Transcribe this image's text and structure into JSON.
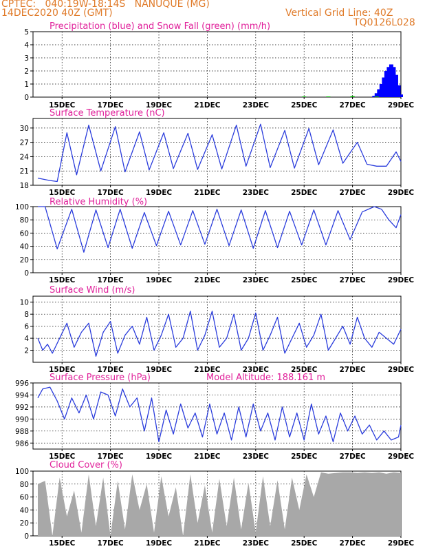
{
  "header": {
    "left_line1": "CPTEC:   040:19W-18:14S   NANUQUE (MG)",
    "left_line2": "14DEC2020 40Z (GMT)",
    "right_line1": "Vertical Grid Line: 40Z",
    "right_line2": "TQ0126L028"
  },
  "x_ticks": [
    "15DEC",
    "17DEC",
    "19DEC",
    "21DEC",
    "23DEC",
    "25DEC",
    "27DEC",
    "29DEC"
  ],
  "chart_data": [
    {
      "id": "precip",
      "type": "bar",
      "title": "Precipitation (blue) and Snow Fall (green) (mm/h)",
      "ylim": [
        0,
        5
      ],
      "yticks": [
        "0",
        "1",
        "2",
        "3",
        "4",
        "5"
      ],
      "ytick_values": [
        0,
        1,
        2,
        3,
        4,
        5
      ],
      "series": [
        {
          "color": "#0000ff",
          "x": [
            13.9,
            14.0,
            14.1,
            14.2,
            14.3,
            14.4,
            14.5,
            14.6,
            14.7,
            14.8,
            14.9,
            15.0
          ],
          "values": [
            0.1,
            0.3,
            0.6,
            1.0,
            1.5,
            2.0,
            2.3,
            2.5,
            2.3,
            1.7,
            0.9,
            0.2
          ]
        },
        {
          "color": "#00c000",
          "x": [
            11.0,
            12.0,
            13.0,
            14.0
          ],
          "values": [
            0.05,
            0.05,
            0.08,
            0.05
          ]
        }
      ]
    },
    {
      "id": "temp",
      "type": "line",
      "title": "Surface Temperature (nC)",
      "ylim": [
        18,
        32
      ],
      "yticks": [
        "18",
        "21",
        "24",
        "27",
        "30"
      ],
      "ytick_values": [
        18,
        21,
        24,
        27,
        30
      ],
      "color": "#2a3cdc",
      "x": [
        0.0,
        0.5,
        0.8,
        1.2,
        1.6,
        2.1,
        2.6,
        3.2,
        3.6,
        4.2,
        4.6,
        5.2,
        5.6,
        6.2,
        6.6,
        7.2,
        7.6,
        8.2,
        8.6,
        9.2,
        9.6,
        10.2,
        10.6,
        11.2,
        11.6,
        12.2,
        12.6,
        13.2,
        13.6,
        14.0,
        14.4,
        14.8,
        15.0
      ],
      "values": [
        19.5,
        19.0,
        18.8,
        29.0,
        20.2,
        30.6,
        21.0,
        30.3,
        20.8,
        29.2,
        21.2,
        29.0,
        21.5,
        28.9,
        21.3,
        28.6,
        21.4,
        30.6,
        22.0,
        30.8,
        21.7,
        29.5,
        21.6,
        29.9,
        22.3,
        29.6,
        22.6,
        27.0,
        22.4,
        22.0,
        22.0,
        25.0,
        23.0
      ]
    },
    {
      "id": "rh",
      "type": "line",
      "title": "Relative Humidity (%)",
      "ylim": [
        0,
        100
      ],
      "yticks": [
        "0",
        "20",
        "40",
        "60",
        "80",
        "100"
      ],
      "ytick_values": [
        0,
        20,
        40,
        60,
        80,
        100
      ],
      "color": "#2a3cdc",
      "x": [
        0.0,
        0.3,
        0.8,
        1.4,
        1.9,
        2.4,
        2.9,
        3.4,
        3.9,
        4.4,
        4.9,
        5.4,
        5.9,
        6.4,
        6.9,
        7.4,
        7.9,
        8.4,
        8.9,
        9.4,
        9.9,
        10.4,
        10.9,
        11.4,
        11.9,
        12.4,
        12.9,
        13.4,
        13.9,
        14.2,
        14.5,
        14.8,
        15.0
      ],
      "values": [
        100,
        100,
        36,
        96,
        31,
        95,
        38,
        96,
        37,
        91,
        41,
        93,
        42,
        94,
        43,
        96,
        41,
        95,
        37,
        94,
        38,
        93,
        42,
        95,
        42,
        94,
        50,
        92,
        100,
        96,
        80,
        68,
        88
      ]
    },
    {
      "id": "wind",
      "type": "line",
      "title": "Surface Wind (m/s)",
      "ylim": [
        0,
        11
      ],
      "yticks": [
        "2",
        "4",
        "6",
        "8",
        "10"
      ],
      "ytick_values": [
        2,
        4,
        6,
        8,
        10
      ],
      "color": "#2a3cdc",
      "x": [
        0.0,
        0.2,
        0.4,
        0.6,
        0.9,
        1.2,
        1.5,
        1.8,
        2.1,
        2.4,
        2.7,
        3.0,
        3.3,
        3.6,
        3.9,
        4.2,
        4.5,
        4.8,
        5.1,
        5.4,
        5.7,
        6.0,
        6.3,
        6.6,
        6.9,
        7.2,
        7.5,
        7.8,
        8.1,
        8.4,
        8.7,
        9.0,
        9.3,
        9.6,
        9.9,
        10.2,
        10.5,
        10.8,
        11.1,
        11.4,
        11.7,
        12.0,
        12.3,
        12.6,
        12.9,
        13.2,
        13.5,
        13.8,
        14.1,
        14.4,
        14.7,
        15.0
      ],
      "values": [
        4.0,
        2.0,
        3.0,
        1.5,
        4.0,
        6.5,
        2.5,
        5.0,
        6.5,
        1.0,
        5.0,
        6.8,
        1.5,
        4.5,
        6.0,
        3.0,
        7.5,
        2.0,
        4.5,
        8.0,
        2.5,
        4.0,
        8.5,
        2.0,
        4.5,
        8.5,
        2.5,
        4.0,
        8.0,
        2.0,
        4.0,
        8.2,
        2.0,
        4.5,
        7.5,
        1.5,
        4.0,
        6.5,
        2.5,
        4.5,
        8.0,
        2.0,
        4.0,
        6.0,
        3.0,
        7.5,
        4.0,
        2.5,
        5.0,
        4.0,
        3.0,
        5.5
      ]
    },
    {
      "id": "pressure",
      "type": "line",
      "title": "Surface Pressure (hPa)",
      "annotation": "Model Altitude: 188.161 m",
      "ylim": [
        985,
        996
      ],
      "yticks": [
        "986",
        "988",
        "990",
        "992",
        "994",
        "996"
      ],
      "ytick_values": [
        986,
        988,
        990,
        992,
        994,
        996
      ],
      "color": "#2a3cdc",
      "x": [
        0.0,
        0.2,
        0.5,
        0.8,
        1.1,
        1.4,
        1.7,
        2.0,
        2.3,
        2.6,
        2.9,
        3.2,
        3.5,
        3.8,
        4.1,
        4.4,
        4.7,
        5.0,
        5.3,
        5.6,
        5.9,
        6.2,
        6.5,
        6.8,
        7.1,
        7.4,
        7.7,
        8.0,
        8.3,
        8.6,
        8.9,
        9.2,
        9.5,
        9.8,
        10.1,
        10.4,
        10.7,
        11.0,
        11.3,
        11.6,
        11.9,
        12.2,
        12.5,
        12.8,
        13.1,
        13.4,
        13.7,
        14.0,
        14.3,
        14.6,
        14.9,
        15.0
      ],
      "values": [
        993.5,
        995.0,
        995.3,
        993.0,
        990.0,
        993.5,
        991.0,
        994.0,
        990.0,
        994.5,
        994.0,
        990.5,
        995.0,
        992.0,
        993.5,
        988.0,
        993.5,
        986.2,
        991.5,
        987.5,
        992.5,
        988.5,
        991.0,
        987.0,
        992.5,
        987.5,
        991.0,
        986.5,
        992.0,
        987.0,
        992.5,
        988.0,
        991.0,
        986.5,
        992.0,
        987.0,
        991.0,
        986.5,
        992.5,
        987.5,
        990.5,
        986.2,
        991.0,
        988.0,
        990.5,
        987.5,
        989.0,
        986.5,
        988.0,
        986.5,
        987.0,
        989.0
      ]
    },
    {
      "id": "cloud",
      "type": "area",
      "title": "Cloud Cover (%)",
      "ylim": [
        0,
        100
      ],
      "yticks": [
        "0",
        "20",
        "40",
        "60",
        "80",
        "100"
      ],
      "ytick_values": [
        0,
        20,
        40,
        60,
        80,
        100
      ],
      "color": "#a8a8a8",
      "x": [
        0.0,
        0.3,
        0.6,
        0.9,
        1.2,
        1.5,
        1.8,
        2.1,
        2.4,
        2.7,
        3.0,
        3.3,
        3.6,
        3.9,
        4.2,
        4.5,
        4.8,
        5.1,
        5.4,
        5.7,
        6.0,
        6.3,
        6.6,
        6.9,
        7.2,
        7.5,
        7.8,
        8.1,
        8.4,
        8.7,
        9.0,
        9.3,
        9.6,
        9.9,
        10.2,
        10.5,
        10.8,
        11.1,
        11.4,
        11.7,
        12.0,
        12.3,
        12.6,
        12.9,
        13.2,
        13.5,
        13.8,
        14.1,
        14.4,
        14.7,
        15.0
      ],
      "values": [
        80,
        85,
        0,
        90,
        30,
        70,
        5,
        95,
        15,
        90,
        0,
        85,
        10,
        95,
        40,
        80,
        5,
        92,
        30,
        75,
        0,
        95,
        20,
        78,
        5,
        88,
        15,
        90,
        10,
        82,
        5,
        92,
        15,
        86,
        10,
        90,
        40,
        95,
        60,
        98,
        96,
        97,
        98,
        98,
        97,
        98,
        97,
        98,
        96,
        98,
        97
      ]
    }
  ]
}
